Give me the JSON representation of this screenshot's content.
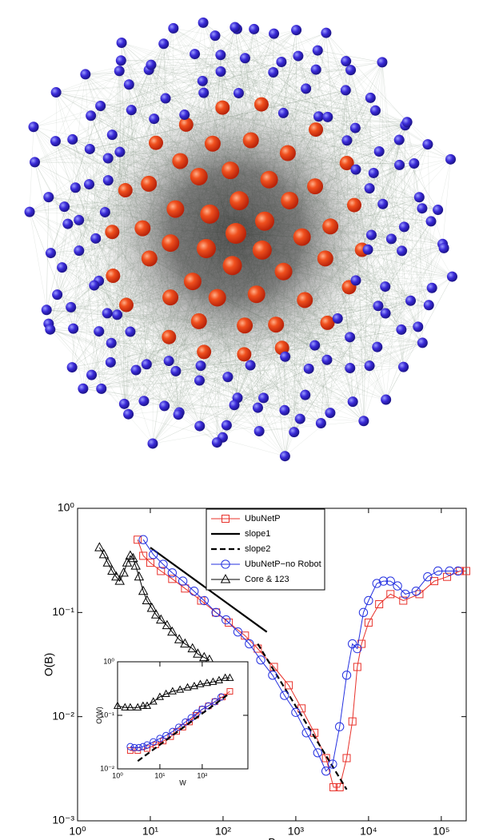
{
  "chart_data": [
    {
      "type": "line",
      "xlabel": "B",
      "ylabel": "O(B)",
      "log_x": true,
      "log_y": true,
      "xlim": [
        1,
        220000
      ],
      "ylim": [
        0.001,
        1
      ],
      "xticks": [
        {
          "value": 1,
          "label": "10⁰"
        },
        {
          "value": 10,
          "label": "10¹"
        },
        {
          "value": 100,
          "label": "10²"
        },
        {
          "value": 1000,
          "label": "10³"
        },
        {
          "value": 10000,
          "label": "10⁴"
        },
        {
          "value": 100000,
          "label": "10⁵"
        }
      ],
      "yticks": [
        {
          "value": 0.001,
          "label": "10⁻³"
        },
        {
          "value": 0.01,
          "label": "10⁻²"
        },
        {
          "value": 0.1,
          "label": "10⁻¹"
        },
        {
          "value": 1,
          "label": "10⁰"
        }
      ],
      "legend": "upper center",
      "series": [
        {
          "name": "UbuNetP",
          "color": "#e8312a",
          "marker": "square",
          "dash": false,
          "x": [
            6.7,
            8,
            10,
            14,
            20,
            30,
            50,
            80,
            120,
            200,
            300,
            500,
            800,
            1200,
            1800,
            2600,
            3300,
            4000,
            5000,
            6000,
            7000,
            8000,
            10000,
            14000,
            20000,
            30000,
            50000,
            80000,
            120000,
            180000,
            220000
          ],
          "values": [
            0.5,
            0.35,
            0.3,
            0.25,
            0.21,
            0.17,
            0.13,
            0.1,
            0.08,
            0.06,
            0.045,
            0.03,
            0.02,
            0.012,
            0.007,
            0.004,
            0.0021,
            0.0021,
            0.004,
            0.009,
            0.03,
            0.05,
            0.08,
            0.12,
            0.15,
            0.13,
            0.15,
            0.2,
            0.22,
            0.25,
            0.25
          ]
        },
        {
          "name": "slope1",
          "color": "#000000",
          "marker": "none",
          "dash": false,
          "x": [
            10,
            400
          ],
          "values": [
            0.42,
            0.065
          ]
        },
        {
          "name": "slope2",
          "color": "#000000",
          "marker": "none",
          "dash": true,
          "x": [
            300,
            5000
          ],
          "values": [
            0.05,
            0.002
          ]
        },
        {
          "name": "UbuNetP−no Robot",
          "color": "#2430e0",
          "marker": "circle",
          "dash": false,
          "x": [
            8,
            11,
            15,
            20,
            28,
            40,
            55,
            80,
            110,
            160,
            230,
            330,
            480,
            700,
            1000,
            1400,
            2000,
            2600,
            3200,
            4000,
            5000,
            6000,
            7000,
            8500,
            10000,
            13000,
            16000,
            20000,
            25000,
            32000,
            45000,
            65000,
            90000,
            130000,
            170000
          ],
          "values": [
            0.5,
            0.36,
            0.29,
            0.24,
            0.2,
            0.16,
            0.13,
            0.1,
            0.085,
            0.065,
            0.05,
            0.035,
            0.025,
            0.016,
            0.011,
            0.007,
            0.0045,
            0.003,
            0.0035,
            0.008,
            0.025,
            0.05,
            0.045,
            0.1,
            0.13,
            0.19,
            0.2,
            0.2,
            0.18,
            0.15,
            0.16,
            0.22,
            0.25,
            0.25,
            0.25
          ]
        },
        {
          "name": "Core & 123",
          "color": "#000000",
          "marker": "triangle",
          "dash": false,
          "x": [
            2,
            2.3,
            2.6,
            3,
            3.4,
            3.8,
            4.3,
            4.8,
            5.3,
            5.8,
            6.3,
            7,
            8,
            9,
            10.5,
            12,
            14,
            17,
            20,
            25,
            30,
            38,
            45,
            55,
            65
          ],
          "values": [
            0.42,
            0.36,
            0.3,
            0.25,
            0.22,
            0.2,
            0.24,
            0.3,
            0.35,
            0.33,
            0.28,
            0.22,
            0.16,
            0.13,
            0.11,
            0.095,
            0.085,
            0.075,
            0.065,
            0.055,
            0.05,
            0.045,
            0.04,
            0.037,
            0.035
          ]
        }
      ]
    },
    {
      "type": "line",
      "xlabel": "W",
      "ylabel": "O(W)",
      "log_x": true,
      "log_y": true,
      "xlim": [
        1,
        1200
      ],
      "ylim": [
        0.01,
        1
      ],
      "xticks": [
        {
          "value": 1,
          "label": "10⁰"
        },
        {
          "value": 10,
          "label": "10¹"
        },
        {
          "value": 100,
          "label": "10²"
        }
      ],
      "yticks": [
        {
          "value": 0.01,
          "label": "10⁻²"
        },
        {
          "value": 0.1,
          "label": "10⁻¹"
        },
        {
          "value": 1,
          "label": "10⁰"
        }
      ],
      "series": [
        {
          "color": "#000000",
          "marker": "triangle",
          "dash": false,
          "x": [
            1,
            1.5,
            2,
            3,
            4,
            5,
            7,
            10,
            14,
            20,
            30,
            45,
            65,
            90,
            130,
            180,
            250,
            350,
            450
          ],
          "values": [
            0.15,
            0.14,
            0.14,
            0.14,
            0.15,
            0.15,
            0.18,
            0.22,
            0.25,
            0.28,
            0.3,
            0.33,
            0.35,
            0.38,
            0.4,
            0.42,
            0.45,
            0.5,
            0.5
          ]
        },
        {
          "color": "#e8312a",
          "marker": "square",
          "dash": false,
          "x": [
            2,
            3,
            5,
            8,
            12,
            18,
            25,
            35,
            50,
            70,
            100,
            140,
            200,
            300,
            450
          ],
          "values": [
            0.022,
            0.022,
            0.024,
            0.028,
            0.033,
            0.04,
            0.05,
            0.06,
            0.075,
            0.1,
            0.13,
            0.15,
            0.18,
            0.22,
            0.28
          ]
        },
        {
          "color": "#2430e0",
          "marker": "circle",
          "dash": false,
          "x": [
            2,
            2.5,
            3.2,
            4,
            5,
            7,
            10,
            14,
            20,
            28,
            40,
            55,
            75,
            100,
            140,
            200,
            280
          ],
          "values": [
            0.026,
            0.025,
            0.025,
            0.026,
            0.028,
            0.032,
            0.037,
            0.042,
            0.05,
            0.06,
            0.075,
            0.09,
            0.11,
            0.13,
            0.15,
            0.18,
            0.22
          ]
        },
        {
          "color": "#000000",
          "marker": "none",
          "dash": true,
          "x": [
            3,
            450
          ],
          "values": [
            0.014,
            0.26
          ]
        }
      ]
    }
  ]
}
